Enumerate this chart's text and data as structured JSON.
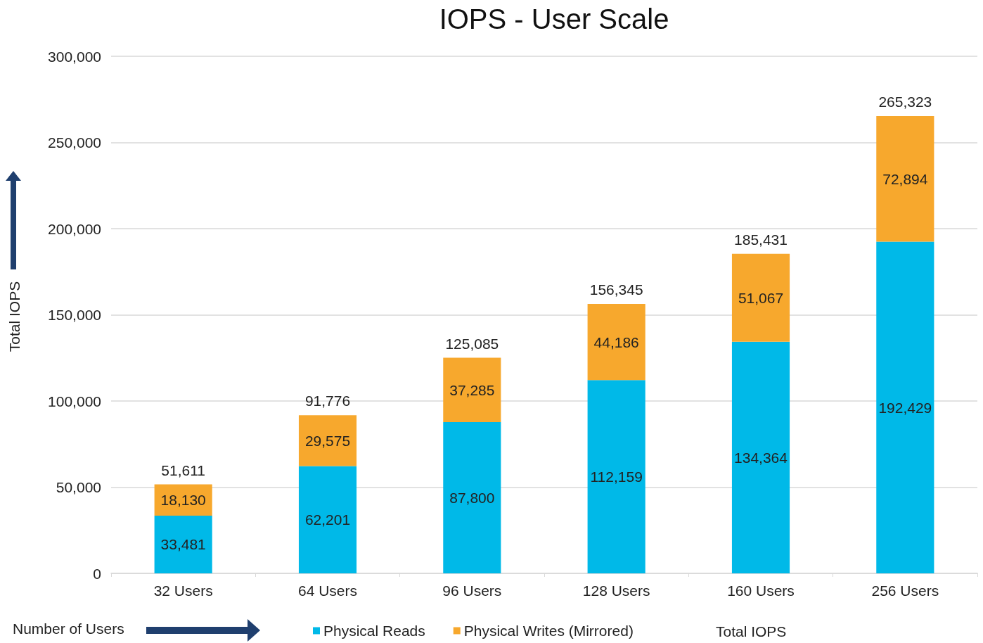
{
  "chart_data": {
    "type": "bar",
    "title": "IOPS - User Scale",
    "xlabel": "Number of Users",
    "ylabel": "Total IOPS",
    "categories": [
      "32 Users",
      "64 Users",
      "96 Users",
      "128 Users",
      "160 Users",
      "256 Users"
    ],
    "series": [
      {
        "name": "Physical Reads",
        "color": "#00b9e8",
        "values": [
          33481,
          62201,
          87800,
          112159,
          134364,
          192429
        ],
        "value_labels": [
          "33,481",
          "62,201",
          "87,800",
          "112,159",
          "134,364",
          "192,429"
        ]
      },
      {
        "name": "Physical Writes (Mirrored)",
        "color": "#f7a82d",
        "values": [
          18130,
          29575,
          37285,
          44186,
          51067,
          72894
        ],
        "value_labels": [
          "18,130",
          "29,575",
          "37,285",
          "44,186",
          "51,067",
          "72,894"
        ]
      }
    ],
    "stacked": true,
    "totals": [
      "51,611",
      "91,776",
      "125,085",
      "156,345",
      "185,431",
      "265,323"
    ],
    "annotations": [
      "Total IOPS"
    ],
    "ylim": [
      0,
      300000
    ],
    "yticks": [
      {
        "value": 0,
        "label": "0"
      },
      {
        "value": 50000,
        "label": "50,000"
      },
      {
        "value": 100000,
        "label": "100,000"
      },
      {
        "value": 150000,
        "label": "150,000"
      },
      {
        "value": 200000,
        "label": "200,000"
      },
      {
        "value": 250000,
        "label": "250,000"
      },
      {
        "value": 300000,
        "label": "300,000"
      }
    ],
    "grid": "y",
    "legend": "bottom"
  }
}
